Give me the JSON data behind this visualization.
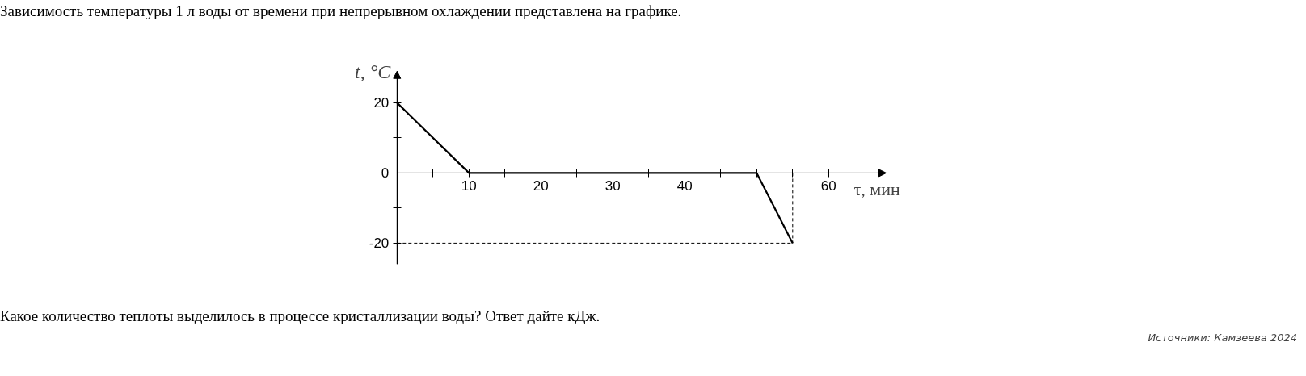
{
  "chart_data": {
    "type": "line",
    "title": "Зависимость температуры 1 л воды от времени при непрерывном охлаждении представлена на графике.",
    "xlabel": "τ, мин",
    "ylabel": "t, °C",
    "x": [
      0,
      10,
      50,
      55
    ],
    "values": [
      20,
      0,
      0,
      -20
    ],
    "color": "#000000",
    "line_style": "solid",
    "xlim": [
      0,
      68
    ],
    "ylim": [
      -26,
      29
    ],
    "xticks": [
      {
        "value": 5,
        "label": null
      },
      10,
      {
        "value": 15,
        "label": null
      },
      20,
      {
        "value": 25,
        "label": null
      },
      30,
      {
        "value": 35,
        "label": null
      },
      40,
      {
        "value": 45,
        "label": null
      },
      {
        "value": 50,
        "label": null
      },
      {
        "value": 55,
        "label": null
      },
      60
    ],
    "yticks": [
      -20,
      {
        "value": -10,
        "label": null
      },
      0,
      {
        "value": 10,
        "label": null
      },
      20
    ],
    "grid": false,
    "ref_lines": [
      {
        "axis": "y",
        "value": -20,
        "line_style": "dashed",
        "color": "#000000"
      },
      {
        "axis": "x",
        "value": 55,
        "line_style": "dashed",
        "color": "#000000"
      }
    ],
    "annotations": [
      "Какое количество теплоты выделилось в процессе кристаллизации воды? Ответ дайте кДж.",
      "Источники: Камзеева 2024"
    ]
  }
}
